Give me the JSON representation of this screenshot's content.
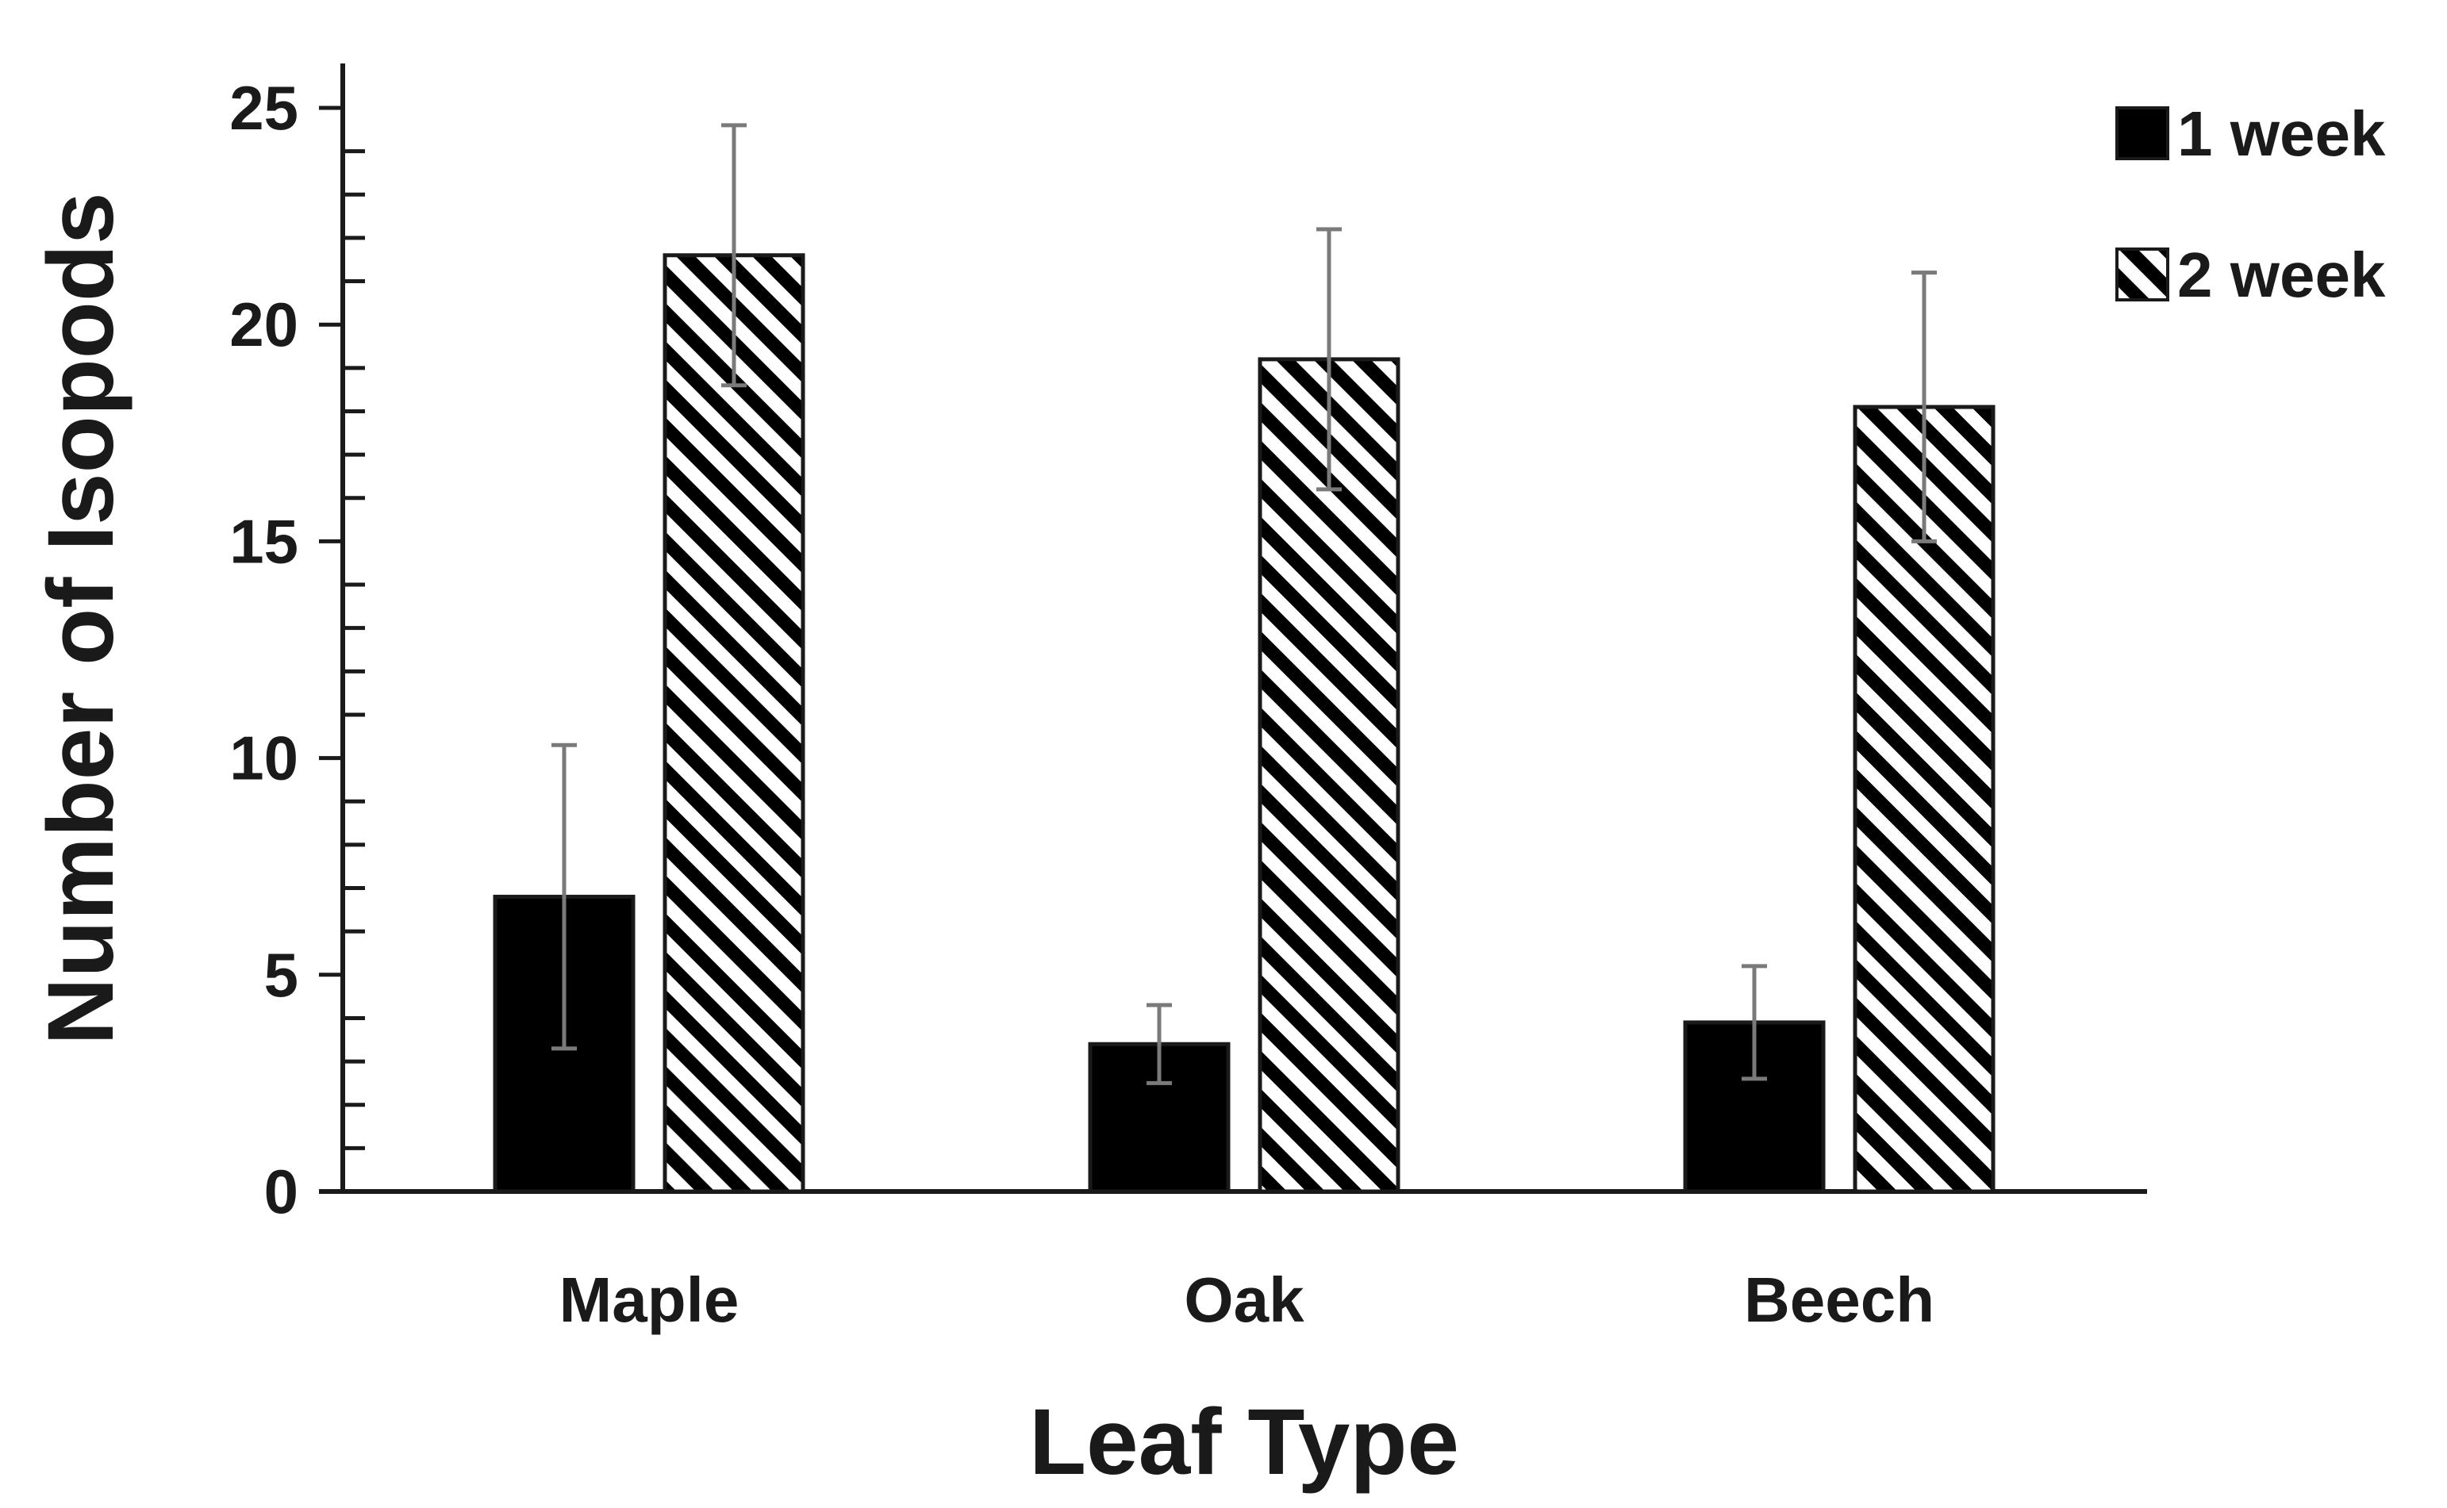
{
  "chart_data": {
    "type": "bar",
    "title": "",
    "xlabel": "Leaf Type",
    "ylabel": "Number of Isopods",
    "categories": [
      "Maple",
      "Oak",
      "Beech"
    ],
    "ylim": [
      0,
      25
    ],
    "yticks": [
      0,
      5,
      10,
      15,
      20,
      25
    ],
    "y_minor_tick_step": 1,
    "grid": false,
    "legend_position": "top-right",
    "series": [
      {
        "name": "1 week",
        "fill": "solid",
        "color": "#000000",
        "values": [
          6.8,
          3.4,
          3.9
        ],
        "error": [
          3.5,
          0.9,
          1.3
        ]
      },
      {
        "name": "2 week",
        "fill": "diagonal-hatch",
        "color": "#000000",
        "values": [
          21.6,
          19.2,
          18.1
        ],
        "error": [
          3.0,
          3.0,
          3.1
        ]
      }
    ]
  }
}
